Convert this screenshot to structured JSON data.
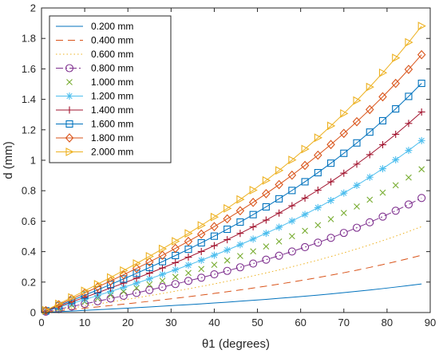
{
  "chart_data": {
    "type": "line",
    "xlabel": "θ1 (degrees)",
    "ylabel": "d (mm)",
    "xlim": [
      0,
      90
    ],
    "ylim": [
      0,
      2
    ],
    "xticks": [
      0,
      10,
      20,
      30,
      40,
      50,
      60,
      70,
      80,
      90
    ],
    "yticks": [
      0,
      0.2,
      0.4,
      0.6,
      0.8,
      1,
      1.2,
      1.4,
      1.6,
      1.8,
      2
    ],
    "xtick_labels": [
      "0",
      "10",
      "20",
      "30",
      "40",
      "50",
      "60",
      "70",
      "80",
      "90"
    ],
    "ytick_labels": [
      "0",
      "0.2",
      "0.4",
      "0.6",
      "0.8",
      "1",
      "1.2",
      "1.4",
      "1.6",
      "1.8",
      "2"
    ],
    "grid": false,
    "legend_position": "top-left",
    "x": [
      1,
      4,
      7,
      10,
      13,
      16,
      19,
      22,
      25,
      28,
      31,
      34,
      37,
      40,
      43,
      46,
      49,
      52,
      55,
      58,
      61,
      64,
      67,
      70,
      73,
      76,
      79,
      82,
      85,
      88
    ],
    "series": [
      {
        "name": "0.200 mm",
        "color": "#0072BD",
        "dash": "",
        "marker": "none",
        "values": [
          0.0014,
          0.0057,
          0.0099,
          0.0142,
          0.0186,
          0.0231,
          0.0276,
          0.0322,
          0.0369,
          0.0418,
          0.0468,
          0.0519,
          0.0572,
          0.0627,
          0.0684,
          0.0743,
          0.0804,
          0.0867,
          0.0933,
          0.1002,
          0.1073,
          0.1148,
          0.1226,
          0.1307,
          0.1392,
          0.1481,
          0.1574,
          0.1672,
          0.1774,
          0.1881
        ]
      },
      {
        "name": "0.400 mm",
        "color": "#D95319",
        "dash": "9,6",
        "marker": "none",
        "values": [
          0.0029,
          0.0114,
          0.0199,
          0.0285,
          0.0372,
          0.0461,
          0.0552,
          0.0644,
          0.0739,
          0.0836,
          0.0936,
          0.1039,
          0.1144,
          0.1254,
          0.1368,
          0.1486,
          0.1608,
          0.1735,
          0.1867,
          0.2004,
          0.2147,
          0.2296,
          0.2452,
          0.2614,
          0.2784,
          0.2962,
          0.3149,
          0.3344,
          0.3548,
          0.3763
        ]
      },
      {
        "name": "0.600 mm",
        "color": "#EDB120",
        "dash": "1.5,3",
        "marker": "none",
        "values": [
          0.0043,
          0.0171,
          0.0298,
          0.0427,
          0.0558,
          0.0691,
          0.0827,
          0.0966,
          0.1108,
          0.1254,
          0.1404,
          0.1558,
          0.1717,
          0.1881,
          0.2052,
          0.2228,
          0.2412,
          0.2602,
          0.28,
          0.3006,
          0.322,
          0.3444,
          0.3678,
          0.3922,
          0.4177,
          0.4444,
          0.4723,
          0.5015,
          0.5322,
          0.5644
        ]
      },
      {
        "name": "0.800 mm",
        "color": "#7E2F8E",
        "dash": "9,3,2,3",
        "marker": "circle",
        "values": [
          0.0057,
          0.0228,
          0.0397,
          0.057,
          0.0744,
          0.0922,
          0.1103,
          0.1288,
          0.1478,
          0.1672,
          0.1872,
          0.2077,
          0.2289,
          0.2508,
          0.2735,
          0.2971,
          0.3215,
          0.347,
          0.3734,
          0.4009,
          0.4294,
          0.4593,
          0.4904,
          0.5229,
          0.5569,
          0.5925,
          0.6298,
          0.6687,
          0.7096,
          0.7525
        ]
      },
      {
        "name": "1.000 mm",
        "color": "#77AC30",
        "dash": "none",
        "marker": "x",
        "values": [
          0.0072,
          0.0285,
          0.0497,
          0.0712,
          0.093,
          0.1152,
          0.1378,
          0.161,
          0.1847,
          0.209,
          0.234,
          0.2597,
          0.2861,
          0.3135,
          0.3419,
          0.3713,
          0.4019,
          0.4337,
          0.4667,
          0.5011,
          0.5368,
          0.5741,
          0.613,
          0.6536,
          0.6961,
          0.7406,
          0.7872,
          0.8359,
          0.887,
          0.9407
        ]
      },
      {
        "name": "1.200 mm",
        "color": "#4DBEEE",
        "dash": "",
        "marker": "star",
        "values": [
          0.0086,
          0.0342,
          0.0596,
          0.0855,
          0.1117,
          0.1383,
          0.1654,
          0.1932,
          0.2216,
          0.2508,
          0.2808,
          0.3116,
          0.3434,
          0.3762,
          0.4103,
          0.4456,
          0.4823,
          0.5204,
          0.5601,
          0.6013,
          0.6442,
          0.6889,
          0.7356,
          0.7844,
          0.8353,
          0.8887,
          0.9446,
          1.0031,
          1.0645,
          1.1289
        ]
      },
      {
        "name": "1.400 mm",
        "color": "#A2142F",
        "dash": "",
        "marker": "plus",
        "values": [
          0.01,
          0.0399,
          0.0696,
          0.0997,
          0.1303,
          0.1613,
          0.193,
          0.2254,
          0.2586,
          0.2926,
          0.3276,
          0.3636,
          0.4006,
          0.4389,
          0.4786,
          0.5198,
          0.5626,
          0.6072,
          0.6534,
          0.7015,
          0.7515,
          0.8037,
          0.8582,
          0.9151,
          0.9745,
          1.0368,
          1.102,
          1.1703,
          1.2419,
          1.317
        ]
      },
      {
        "name": "1.600 mm",
        "color": "#0072BD",
        "dash": "",
        "marker": "square",
        "values": [
          0.0114,
          0.0456,
          0.0795,
          0.114,
          0.1489,
          0.1844,
          0.2205,
          0.2576,
          0.2955,
          0.3344,
          0.3744,
          0.4155,
          0.4578,
          0.5016,
          0.547,
          0.5941,
          0.643,
          0.6939,
          0.7468,
          0.8017,
          0.8589,
          0.9185,
          0.9808,
          1.0458,
          1.1138,
          1.1849,
          1.2595,
          1.3375,
          1.4193,
          1.5051
        ]
      },
      {
        "name": "1.800 mm",
        "color": "#D95319",
        "dash": "",
        "marker": "diamond",
        "values": [
          0.0129,
          0.0513,
          0.0895,
          0.1282,
          0.1675,
          0.2074,
          0.2481,
          0.2898,
          0.3324,
          0.3762,
          0.4212,
          0.4675,
          0.5151,
          0.5644,
          0.6154,
          0.6684,
          0.7234,
          0.7806,
          0.8401,
          0.9019,
          0.9662,
          1.0333,
          1.1034,
          1.1765,
          1.253,
          1.333,
          1.4169,
          1.5047,
          1.5967,
          1.6932
        ]
      },
      {
        "name": "2.000 mm",
        "color": "#EDB120",
        "dash": "",
        "marker": "triangle-right",
        "values": [
          0.0143,
          0.057,
          0.0994,
          0.1425,
          0.1861,
          0.2305,
          0.2757,
          0.322,
          0.3694,
          0.418,
          0.468,
          0.5194,
          0.5723,
          0.6271,
          0.6838,
          0.7426,
          0.8037,
          0.8673,
          0.9334,
          1.0021,
          1.0736,
          1.1481,
          1.226,
          1.3072,
          1.3922,
          1.4811,
          1.5743,
          1.6719,
          1.7741,
          1.8814
        ]
      }
    ]
  }
}
